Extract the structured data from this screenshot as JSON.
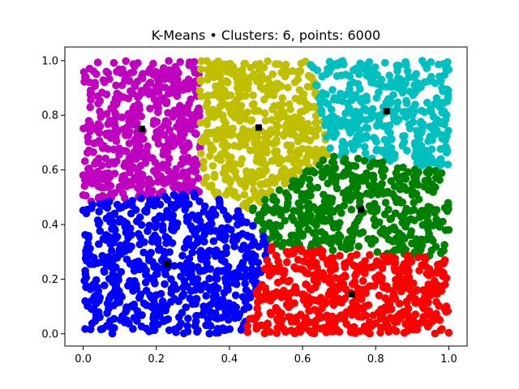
{
  "chart_data": {
    "type": "scatter",
    "title": "K-Means • Clusters: 6, points: 6000",
    "xlabel": "",
    "ylabel": "",
    "xlim": [
      -0.05,
      1.05
    ],
    "ylim": [
      -0.045,
      1.05
    ],
    "grid": false,
    "x_ticks": [
      0.0,
      0.2,
      0.4,
      0.6,
      0.8,
      1.0
    ],
    "x_tick_labels": [
      "0.0",
      "0.2",
      "0.4",
      "0.6",
      "0.8",
      "1.0"
    ],
    "y_ticks": [
      0.0,
      0.2,
      0.4,
      0.6,
      0.8,
      1.0
    ],
    "y_tick_labels": [
      "0.0",
      "0.2",
      "0.4",
      "0.6",
      "0.8",
      "1.0"
    ],
    "points_total": 6000,
    "points_marker": "circle",
    "centroid_marker": "square",
    "centroid_color": "#000000",
    "clusters": [
      {
        "color": "#bf00bf",
        "centroid": [
          0.16,
          0.75
        ]
      },
      {
        "color": "#bfbf00",
        "centroid": [
          0.48,
          0.755
        ]
      },
      {
        "color": "#00bfbf",
        "centroid": [
          0.83,
          0.815
        ]
      },
      {
        "color": "#008000",
        "centroid": [
          0.76,
          0.455
        ]
      },
      {
        "color": "#0000ff",
        "centroid": [
          0.23,
          0.255
        ]
      },
      {
        "color": "#ff0000",
        "centroid": [
          0.735,
          0.145
        ]
      }
    ]
  }
}
